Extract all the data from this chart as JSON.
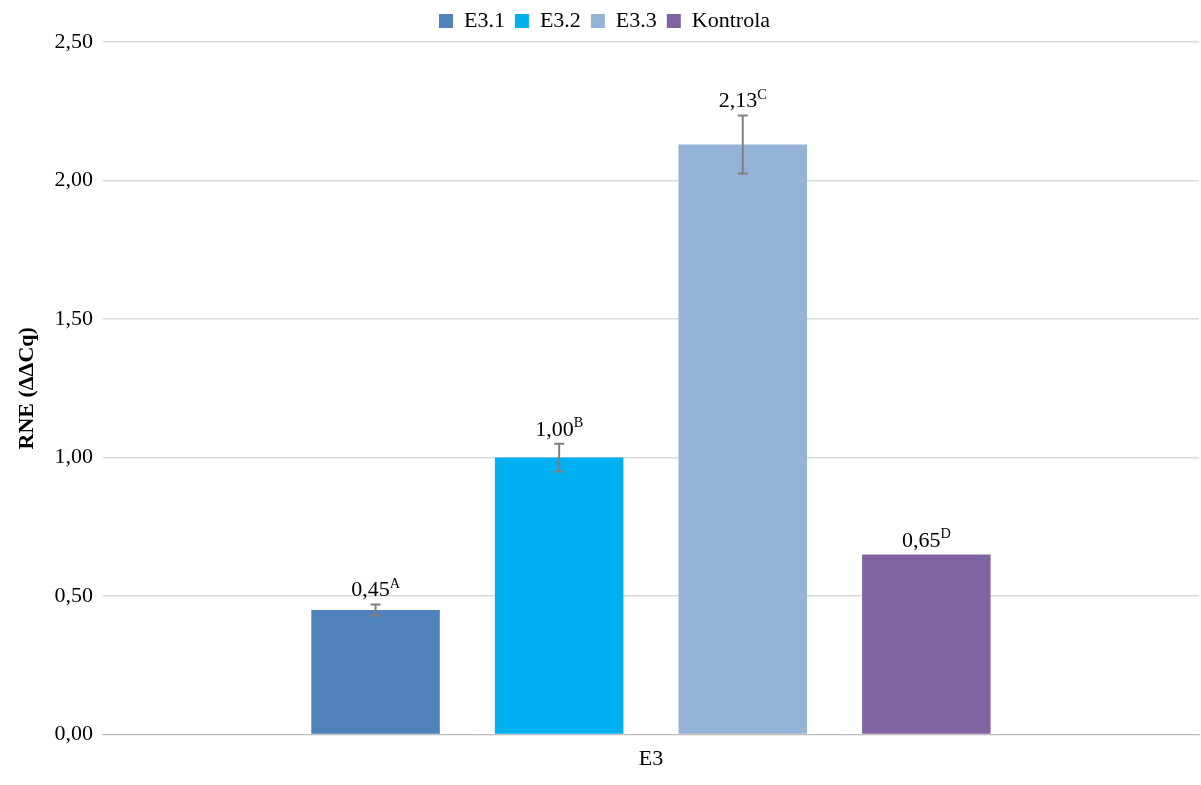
{
  "chart_data": {
    "type": "bar",
    "ylabel": "RNE (ΔΔCq)",
    "categories": [
      "E3"
    ],
    "series": [
      {
        "name": "E3.1",
        "color": "#4f81bd",
        "values": [
          0.45
        ],
        "errors": [
          0.02
        ],
        "value_labels": [
          "0,45$^{A}$"
        ]
      },
      {
        "name": "E3.2",
        "color": "#00b0f0",
        "values": [
          1.0
        ],
        "errors": [
          0.05
        ],
        "value_labels": [
          "1,00$^{B}$"
        ]
      },
      {
        "name": "E3.3",
        "color": "#95b3d7",
        "values": [
          2.13
        ],
        "errors": [
          0.105
        ],
        "value_labels": [
          "2,13$^{C}$"
        ]
      },
      {
        "name": "Kontrola",
        "color": "#8064a2",
        "values": [
          0.65
        ],
        "errors": [
          null
        ],
        "value_labels": [
          "0,65$^{D}$"
        ]
      }
    ],
    "ylim": [
      0,
      2.5
    ],
    "yticks": [
      {
        "value": 0,
        "label": "0,00"
      },
      {
        "value": 0.5,
        "label": "0,50"
      },
      {
        "value": 1,
        "label": "1,00"
      },
      {
        "value": 1.5,
        "label": "1,50"
      },
      {
        "value": 2,
        "label": "2,00"
      },
      {
        "value": 2.5,
        "label": "2,50"
      }
    ],
    "grid": "y",
    "legend": "top"
  }
}
